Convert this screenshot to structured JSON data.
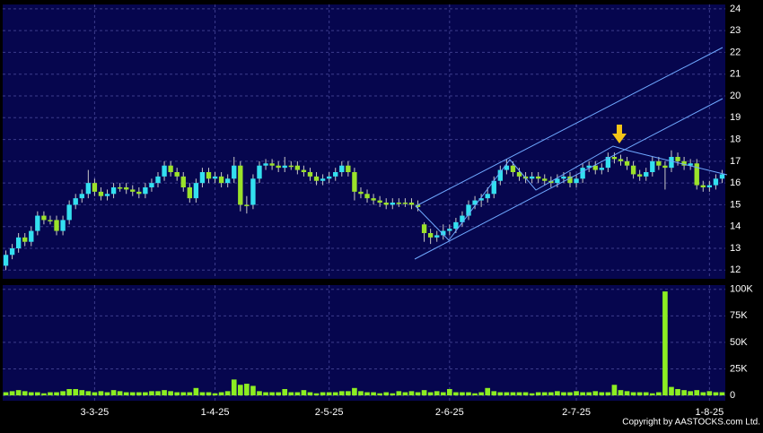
{
  "chart_data": {
    "type": "candlestick",
    "categories": [
      null,
      null,
      null,
      null,
      null,
      null,
      null,
      null,
      null,
      null,
      null,
      null,
      null,
      null,
      "3-3-25",
      null,
      null,
      null,
      null,
      null,
      null,
      null,
      null,
      null,
      null,
      null,
      null,
      null,
      null,
      null,
      null,
      null,
      null,
      "1-4-25",
      null,
      null,
      null,
      null,
      null,
      null,
      null,
      null,
      null,
      null,
      null,
      null,
      null,
      null,
      null,
      null,
      null,
      "2-5-25",
      null,
      null,
      null,
      null,
      null,
      null,
      null,
      null,
      null,
      null,
      null,
      null,
      null,
      null,
      null,
      null,
      null,
      null,
      "2-6-25",
      null,
      null,
      null,
      null,
      null,
      null,
      null,
      null,
      null,
      null,
      null,
      null,
      null,
      null,
      null,
      null,
      null,
      null,
      null,
      "2-7-25",
      null,
      null,
      null,
      null,
      null,
      null,
      null,
      null,
      null,
      null,
      null,
      null,
      null,
      null,
      null,
      null,
      null,
      null,
      null,
      null,
      "1-8-25",
      null,
      null
    ],
    "open": [
      12.2,
      12.7,
      13.0,
      13.5,
      13.3,
      13.8,
      14.5,
      14.3,
      14.3,
      13.8,
      14.3,
      15.0,
      15.3,
      15.5,
      16.0,
      15.6,
      15.4,
      15.5,
      15.8,
      15.8,
      15.7,
      15.6,
      15.5,
      15.8,
      16.0,
      16.3,
      16.8,
      16.5,
      16.3,
      15.8,
      15.3,
      16.0,
      16.5,
      16.2,
      16.3,
      16.0,
      16.2,
      16.8,
      15.0,
      15.0,
      16.2,
      16.8,
      16.9,
      16.8,
      16.7,
      16.8,
      16.8,
      16.6,
      16.5,
      16.3,
      16.1,
      16.2,
      16.3,
      16.5,
      16.8,
      16.5,
      15.6,
      15.5,
      15.3,
      15.2,
      15.1,
      15.0,
      15.1,
      15.1,
      15.1,
      15.0,
      14.1,
      13.7,
      13.5,
      13.6,
      13.8,
      13.9,
      14.2,
      14.5,
      15.0,
      15.2,
      15.3,
      15.5,
      16.1,
      16.6,
      16.8,
      16.5,
      16.3,
      16.2,
      16.3,
      16.2,
      16.1,
      16.0,
      16.2,
      16.3,
      16.0,
      16.2,
      16.7,
      16.8,
      16.6,
      16.7,
      17.2,
      17.1,
      17.0,
      16.8,
      16.4,
      16.3,
      16.5,
      17.0,
      16.8,
      16.7,
      17.2,
      17.0,
      16.8,
      16.9,
      15.9,
      15.8,
      15.9,
      16.2
    ],
    "high": [
      12.9,
      13.2,
      13.7,
      13.7,
      14.0,
      14.7,
      14.7,
      14.5,
      14.5,
      14.5,
      15.2,
      15.5,
      15.7,
      16.6,
      16.2,
      15.8,
      15.7,
      16.0,
      16.0,
      16.0,
      15.9,
      15.8,
      16.0,
      16.2,
      16.5,
      17.0,
      17.0,
      16.7,
      16.5,
      16.0,
      16.2,
      16.7,
      16.7,
      16.5,
      16.5,
      16.4,
      17.2,
      17.0,
      15.4,
      16.4,
      17.0,
      17.1,
      17.1,
      17.0,
      17.2,
      17.0,
      17.0,
      16.8,
      16.7,
      16.5,
      16.4,
      16.5,
      16.7,
      17.0,
      17.0,
      16.7,
      15.8,
      15.7,
      15.5,
      15.4,
      15.3,
      15.3,
      15.3,
      15.3,
      15.3,
      15.2,
      14.2,
      13.9,
      13.8,
      14.1,
      14.1,
      14.4,
      14.7,
      15.2,
      15.4,
      15.5,
      15.8,
      16.3,
      16.8,
      17.1,
      17.0,
      16.7,
      16.5,
      16.5,
      16.5,
      16.4,
      16.3,
      16.4,
      16.5,
      16.5,
      16.4,
      16.9,
      17.0,
      17.0,
      16.9,
      17.4,
      17.4,
      17.3,
      17.2,
      17.0,
      16.6,
      16.7,
      17.2,
      17.2,
      17.0,
      17.5,
      17.4,
      17.2,
      17.1,
      17.1,
      16.1,
      16.1,
      16.4,
      16.6
    ],
    "low": [
      12.0,
      12.5,
      12.8,
      13.1,
      13.1,
      13.6,
      14.1,
      14.1,
      13.6,
      13.6,
      14.1,
      14.8,
      15.1,
      15.3,
      15.4,
      15.2,
      15.2,
      15.3,
      15.6,
      15.5,
      15.4,
      15.3,
      15.3,
      15.6,
      15.8,
      16.1,
      16.3,
      16.1,
      15.6,
      15.1,
      15.1,
      15.8,
      16.0,
      16.0,
      15.8,
      15.8,
      16.0,
      14.7,
      14.6,
      14.8,
      16.0,
      16.6,
      16.6,
      16.5,
      16.5,
      16.6,
      16.4,
      16.3,
      16.1,
      15.9,
      15.9,
      16.0,
      16.1,
      16.3,
      16.3,
      15.2,
      15.3,
      15.1,
      15.0,
      14.9,
      14.8,
      14.8,
      14.9,
      14.9,
      14.8,
      14.7,
      13.3,
      13.2,
      13.3,
      13.4,
      13.6,
      13.7,
      14.0,
      14.3,
      14.8,
      14.9,
      15.1,
      15.3,
      15.9,
      16.4,
      16.3,
      16.1,
      16.0,
      16.0,
      16.0,
      15.9,
      15.8,
      15.8,
      16.0,
      15.8,
      15.8,
      16.0,
      16.5,
      16.4,
      16.4,
      16.5,
      16.9,
      16.8,
      16.6,
      16.2,
      16.1,
      16.1,
      16.3,
      16.6,
      15.7,
      16.5,
      16.8,
      16.6,
      16.6,
      15.7,
      15.6,
      15.6,
      15.7,
      16.0
    ],
    "close": [
      12.7,
      13.0,
      13.5,
      13.3,
      13.8,
      14.5,
      14.3,
      14.3,
      13.8,
      14.3,
      15.0,
      15.3,
      15.5,
      16.0,
      15.6,
      15.4,
      15.5,
      15.8,
      15.8,
      15.7,
      15.6,
      15.5,
      15.8,
      16.0,
      16.3,
      16.8,
      16.5,
      16.3,
      15.8,
      15.3,
      16.0,
      16.5,
      16.2,
      16.3,
      16.0,
      16.2,
      16.8,
      15.0,
      15.0,
      16.2,
      16.8,
      16.9,
      16.8,
      16.7,
      16.8,
      16.8,
      16.6,
      16.5,
      16.3,
      16.1,
      16.2,
      16.3,
      16.5,
      16.8,
      16.5,
      15.6,
      15.5,
      15.3,
      15.2,
      15.1,
      15.0,
      15.1,
      15.1,
      15.1,
      15.0,
      14.9,
      13.7,
      13.5,
      13.6,
      13.8,
      13.9,
      14.2,
      14.5,
      15.0,
      15.2,
      15.3,
      15.5,
      16.1,
      16.6,
      16.8,
      16.5,
      16.3,
      16.2,
      16.3,
      16.2,
      16.1,
      16.0,
      16.2,
      16.3,
      16.0,
      16.2,
      16.7,
      16.8,
      16.6,
      16.7,
      17.2,
      17.1,
      17.0,
      16.8,
      16.4,
      16.3,
      16.5,
      17.0,
      16.8,
      16.7,
      17.2,
      17.0,
      16.8,
      16.9,
      15.9,
      15.8,
      15.9,
      16.2,
      16.4
    ],
    "volume": [
      3000,
      4000,
      5000,
      4000,
      3000,
      3000,
      2000,
      3000,
      3000,
      4000,
      6000,
      6000,
      5000,
      4000,
      3000,
      4000,
      3000,
      5000,
      4000,
      3000,
      3000,
      3000,
      3000,
      4000,
      4000,
      5000,
      4000,
      3000,
      3000,
      3000,
      7000,
      3000,
      3000,
      2000,
      3000,
      4000,
      15000,
      10000,
      11000,
      9000,
      4000,
      3000,
      3000,
      3000,
      6000,
      3000,
      3000,
      5000,
      3000,
      2000,
      3000,
      3000,
      3000,
      4000,
      4000,
      7000,
      4000,
      3000,
      3000,
      2000,
      3000,
      2000,
      4000,
      3000,
      4000,
      3000,
      5000,
      3000,
      4000,
      3000,
      6000,
      3000,
      3000,
      3000,
      2000,
      3000,
      7000,
      4000,
      3000,
      3000,
      3000,
      3000,
      3000,
      2000,
      3000,
      3000,
      3000,
      4000,
      3000,
      3000,
      4000,
      3000,
      3000,
      4000,
      3000,
      3000,
      10000,
      5000,
      4000,
      3000,
      3000,
      3000,
      2000,
      3000,
      98000,
      8000,
      6000,
      5000,
      4000,
      5000,
      3000,
      4000,
      3000,
      3000
    ],
    "ylim": [
      11.6,
      24.2
    ],
    "yticks": [
      12,
      13,
      14,
      15,
      16,
      17,
      18,
      19,
      20,
      21,
      22,
      23,
      24
    ],
    "y2lim": [
      -5000,
      104000
    ],
    "y2ticks": [
      0,
      {
        "value": 25000,
        "label": "25K"
      },
      {
        "value": 50000,
        "label": "50K"
      },
      {
        "value": 75000,
        "label": "75K"
      },
      {
        "value": 100000,
        "label": "100K"
      }
    ],
    "up_color": "#33e0f0",
    "down_color": "#9be22a",
    "volume_color": "#8cee22",
    "grid": true
  },
  "copyright": "Copyright by AASTOCKS.com Ltd."
}
